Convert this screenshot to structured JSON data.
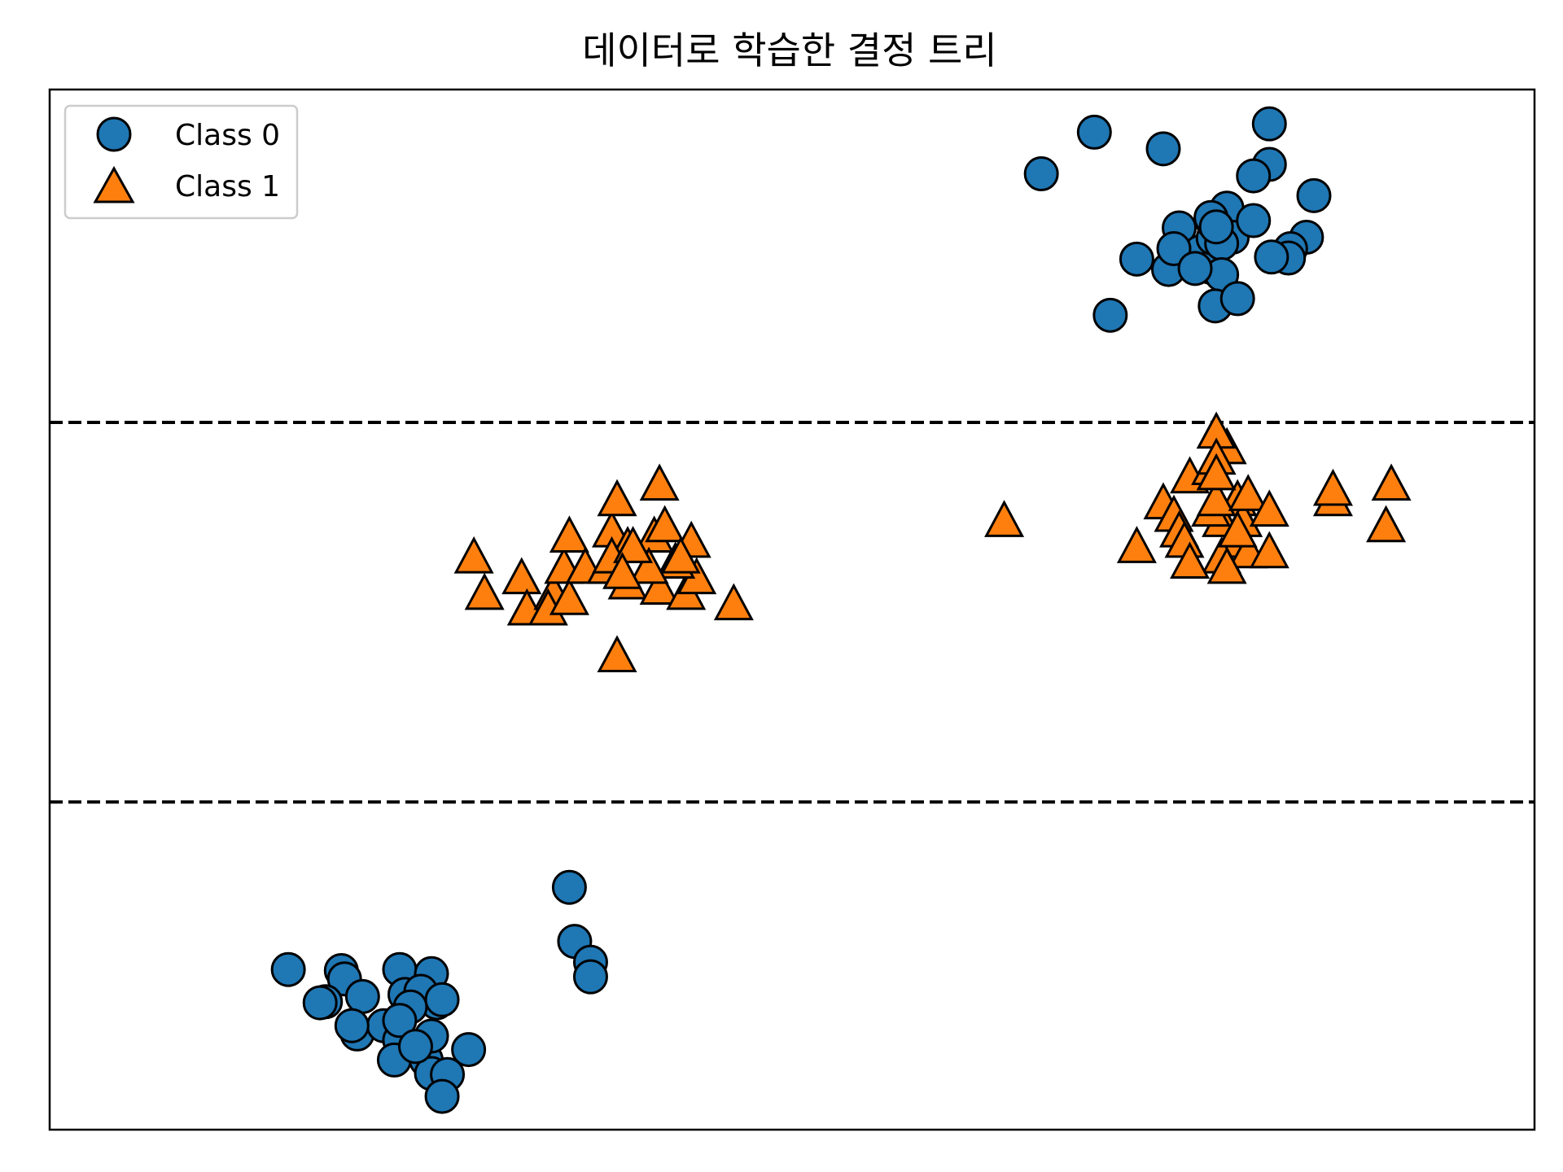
{
  "chart_data": {
    "type": "scatter",
    "title": "데이터로 학습한 결정 트리",
    "xlabel": "",
    "ylabel": "",
    "xlim": [
      -2,
      12
    ],
    "ylim": [
      -6,
      4
    ],
    "grid": false,
    "ticks_visible": false,
    "legend": {
      "placement": "top-left",
      "entries": [
        {
          "label": "Class 0",
          "marker": "circle",
          "color": "#1f77b4"
        },
        {
          "label": "Class 1",
          "marker": "triangle",
          "color": "#ff7f0e"
        }
      ]
    },
    "decision_boundaries": [
      {
        "orientation": "horizontal",
        "y": 0.8,
        "style": "dashed",
        "color": "#000000"
      },
      {
        "orientation": "horizontal",
        "y": -2.85,
        "style": "dashed",
        "color": "#000000"
      }
    ],
    "series": [
      {
        "name": "Class 0",
        "marker": "circle",
        "color": "#1f77b4",
        "points": [
          [
            7.35,
            3.19
          ],
          [
            7.85,
            3.59
          ],
          [
            8.5,
            3.43
          ],
          [
            9.5,
            3.67
          ],
          [
            9.5,
            3.28
          ],
          [
            9.85,
            2.58
          ],
          [
            9.92,
            2.98
          ],
          [
            9.35,
            3.17
          ],
          [
            9.1,
            2.86
          ],
          [
            9.15,
            2.58
          ],
          [
            8.65,
            2.67
          ],
          [
            8.25,
            2.37
          ],
          [
            8.55,
            2.27
          ],
          [
            8.85,
            2.44
          ],
          [
            8.95,
            2.29
          ],
          [
            8.97,
            2.57
          ],
          [
            9.05,
            2.52
          ],
          [
            8.97,
            2.72
          ],
          [
            8.95,
            2.77
          ],
          [
            9.05,
            2.22
          ],
          [
            8.99,
            1.92
          ],
          [
            9.2,
            1.99
          ],
          [
            8.6,
            2.47
          ],
          [
            9.35,
            2.74
          ],
          [
            9.7,
            2.47
          ],
          [
            9.68,
            2.38
          ],
          [
            8.0,
            1.83
          ],
          [
            9.0,
            2.68
          ],
          [
            8.8,
            2.28
          ],
          [
            9.52,
            2.39
          ],
          [
            0.25,
            -4.46
          ],
          [
            0.75,
            -4.47
          ],
          [
            0.78,
            -4.55
          ],
          [
            1.3,
            -4.46
          ],
          [
            1.6,
            -4.5
          ],
          [
            0.6,
            -4.77
          ],
          [
            0.95,
            -4.72
          ],
          [
            1.35,
            -4.7
          ],
          [
            1.65,
            -4.78
          ],
          [
            1.5,
            -4.67
          ],
          [
            1.4,
            -4.82
          ],
          [
            1.7,
            -4.75
          ],
          [
            0.55,
            -4.78
          ],
          [
            0.9,
            -5.08
          ],
          [
            1.15,
            -5.0
          ],
          [
            1.3,
            -5.14
          ],
          [
            1.25,
            -5.33
          ],
          [
            1.55,
            -5.33
          ],
          [
            1.6,
            -5.46
          ],
          [
            1.75,
            -5.47
          ],
          [
            1.7,
            -5.68
          ],
          [
            1.95,
            -5.23
          ],
          [
            1.3,
            -4.95
          ],
          [
            2.9,
            -3.67
          ],
          [
            2.95,
            -4.19
          ],
          [
            3.1,
            -4.39
          ],
          [
            3.1,
            -4.53
          ],
          [
            1.6,
            -5.1
          ],
          [
            1.45,
            -5.2
          ],
          [
            0.85,
            -5.0
          ]
        ]
      },
      {
        "name": "Class 1",
        "marker": "triangle",
        "color": "#ff7f0e",
        "points": [
          [
            2.0,
            -0.5
          ],
          [
            2.1,
            -0.85
          ],
          [
            2.45,
            -0.7
          ],
          [
            2.5,
            -1.0
          ],
          [
            2.75,
            -0.85
          ],
          [
            2.7,
            -1.0
          ],
          [
            2.9,
            -0.9
          ],
          [
            2.85,
            -0.6
          ],
          [
            2.9,
            -0.3
          ],
          [
            3.3,
            -0.25
          ],
          [
            3.35,
            0.05
          ],
          [
            3.05,
            -0.6
          ],
          [
            3.25,
            -0.6
          ],
          [
            3.45,
            -0.4
          ],
          [
            3.7,
            -0.3
          ],
          [
            3.75,
            0.2
          ],
          [
            3.8,
            -0.2
          ],
          [
            3.3,
            -0.5
          ],
          [
            3.45,
            -0.75
          ],
          [
            3.75,
            -0.8
          ],
          [
            4.05,
            -0.35
          ],
          [
            4.0,
            -0.85
          ],
          [
            4.1,
            -0.7
          ],
          [
            3.9,
            -0.55
          ],
          [
            3.65,
            -0.6
          ],
          [
            4.45,
            -0.95
          ],
          [
            3.35,
            -1.45
          ],
          [
            3.5,
            -0.4
          ],
          [
            3.4,
            -0.65
          ],
          [
            3.95,
            -0.5
          ],
          [
            7.0,
            -0.15
          ],
          [
            8.25,
            -0.4
          ],
          [
            8.5,
            0.02
          ],
          [
            8.6,
            -0.1
          ],
          [
            8.65,
            -0.25
          ],
          [
            8.75,
            0.27
          ],
          [
            8.95,
            0.35
          ],
          [
            9.1,
            0.55
          ],
          [
            9.0,
            0.7
          ],
          [
            9.0,
            0.45
          ],
          [
            9.2,
            0.05
          ],
          [
            9.25,
            -0.15
          ],
          [
            9.15,
            -0.35
          ],
          [
            9.05,
            -0.5
          ],
          [
            9.3,
            -0.45
          ],
          [
            9.05,
            -0.15
          ],
          [
            8.95,
            -0.05
          ],
          [
            8.7,
            -0.35
          ],
          [
            8.75,
            -0.55
          ],
          [
            9.0,
            0.05
          ],
          [
            9.3,
            0.1
          ],
          [
            9.5,
            -0.05
          ],
          [
            10.1,
            0.05
          ],
          [
            10.1,
            0.15
          ],
          [
            10.65,
            0.2
          ],
          [
            10.6,
            -0.2
          ],
          [
            9.5,
            -0.45
          ],
          [
            9.0,
            0.3
          ],
          [
            9.1,
            -0.6
          ],
          [
            9.2,
            -0.25
          ]
        ]
      }
    ]
  }
}
